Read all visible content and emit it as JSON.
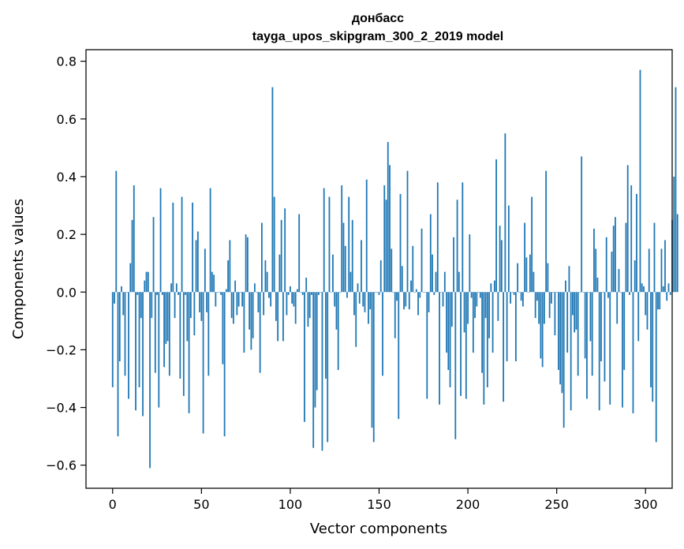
{
  "chart_data": {
    "type": "bar",
    "title_line1": "донбасс",
    "title_line2": "tayga_upos_skipgram_300_2_2019 model",
    "xlabel": "Vector components",
    "ylabel": "Components values",
    "xlim": [
      -15,
      315
    ],
    "ylim": [
      -0.68,
      0.84
    ],
    "x_ticks": [
      0,
      50,
      100,
      150,
      200,
      250,
      300
    ],
    "y_ticks": [
      -0.6,
      -0.4,
      -0.2,
      0.0,
      0.2,
      0.4,
      0.6,
      0.8
    ],
    "x_tick_labels": [
      "0",
      "50",
      "100",
      "150",
      "200",
      "250",
      "300"
    ],
    "y_tick_labels": [
      "−0.6",
      "−0.4",
      "−0.2",
      "0.0",
      "0.2",
      "0.4",
      "0.6",
      "0.8"
    ],
    "bar_color": "#1f77b4",
    "grid": false,
    "legend": "none",
    "values": [
      -0.33,
      -0.04,
      0.42,
      -0.5,
      -0.24,
      0.02,
      -0.08,
      -0.29,
      0.0,
      -0.37,
      0.1,
      0.25,
      0.37,
      -0.41,
      -0.01,
      -0.33,
      -0.09,
      -0.43,
      0.04,
      0.07,
      0.07,
      -0.61,
      -0.09,
      0.26,
      -0.28,
      -0.01,
      -0.4,
      0.36,
      -0.01,
      -0.26,
      -0.18,
      -0.17,
      -0.29,
      0.03,
      0.31,
      -0.09,
      0.03,
      -0.01,
      -0.3,
      0.33,
      -0.36,
      -0.01,
      -0.17,
      -0.42,
      -0.09,
      0.31,
      -0.15,
      0.18,
      0.21,
      -0.07,
      -0.1,
      -0.49,
      0.15,
      -0.07,
      -0.29,
      0.36,
      0.07,
      0.06,
      -0.05,
      0.0,
      0.0,
      -0.01,
      -0.25,
      -0.5,
      0.01,
      0.11,
      0.18,
      -0.09,
      -0.11,
      0.04,
      -0.08,
      -0.05,
      0.0,
      -0.05,
      -0.21,
      0.2,
      0.19,
      -0.13,
      -0.2,
      -0.16,
      0.03,
      0.0,
      -0.07,
      -0.28,
      0.24,
      -0.08,
      0.11,
      0.07,
      -0.02,
      -0.05,
      0.71,
      0.33,
      -0.1,
      -0.17,
      0.13,
      0.25,
      -0.17,
      0.29,
      -0.08,
      -0.01,
      0.02,
      -0.04,
      -0.05,
      -0.11,
      0.01,
      0.27,
      0.0,
      -0.01,
      -0.45,
      0.05,
      -0.12,
      -0.09,
      -0.01,
      -0.54,
      -0.4,
      -0.34,
      -0.01,
      0.0,
      -0.55,
      0.36,
      -0.3,
      -0.52,
      0.33,
      0.0,
      0.13,
      -0.05,
      -0.13,
      -0.27,
      0.0,
      0.37,
      0.24,
      0.16,
      -0.02,
      0.33,
      0.07,
      0.25,
      -0.08,
      -0.19,
      0.03,
      -0.04,
      0.18,
      -0.05,
      -0.07,
      0.39,
      -0.11,
      -0.06,
      -0.47,
      -0.52,
      0.0,
      0.0,
      -0.01,
      0.11,
      -0.29,
      0.37,
      0.32,
      0.52,
      0.44,
      0.15,
      0.0,
      -0.16,
      -0.03,
      -0.44,
      0.34,
      0.09,
      -0.06,
      -0.05,
      0.42,
      -0.06,
      0.04,
      0.16,
      0.0,
      0.01,
      -0.08,
      -0.02,
      0.22,
      0.0,
      0.0,
      -0.37,
      -0.07,
      0.27,
      0.13,
      -0.01,
      0.07,
      0.38,
      -0.39,
      0.0,
      -0.05,
      0.07,
      -0.21,
      -0.27,
      -0.33,
      -0.12,
      0.19,
      -0.51,
      0.32,
      0.07,
      -0.36,
      0.38,
      -0.14,
      -0.37,
      -0.11,
      0.2,
      -0.02,
      -0.21,
      -0.09,
      -0.05,
      0.0,
      -0.02,
      -0.28,
      -0.39,
      -0.09,
      -0.33,
      -0.16,
      0.03,
      -0.21,
      0.04,
      0.46,
      -0.1,
      0.23,
      0.18,
      -0.38,
      0.55,
      -0.24,
      0.3,
      -0.04,
      0.0,
      -0.01,
      -0.24,
      0.1,
      0.0,
      -0.03,
      -0.05,
      0.24,
      0.12,
      0.0,
      0.13,
      0.33,
      0.07,
      -0.09,
      -0.03,
      -0.11,
      -0.23,
      -0.26,
      -0.11,
      0.42,
      0.1,
      -0.09,
      -0.04,
      0.0,
      -0.15,
      0.0,
      -0.27,
      -0.32,
      -0.35,
      -0.47,
      0.04,
      -0.21,
      0.09,
      -0.41,
      -0.08,
      -0.14,
      -0.13,
      -0.29,
      0.0,
      0.47,
      0.0,
      -0.23,
      -0.37,
      0.0,
      -0.17,
      -0.29,
      0.22,
      0.15,
      0.05,
      -0.41,
      -0.24,
      0.0,
      -0.31,
      0.19,
      -0.02,
      -0.39,
      0.14,
      0.23,
      0.26,
      -0.11,
      0.08,
      0.0,
      -0.4,
      -0.27,
      0.24,
      0.44,
      -0.01,
      0.37,
      -0.42,
      0.11,
      0.34,
      -0.17,
      0.77,
      0.03,
      0.02,
      -0.08,
      -0.13,
      0.15,
      -0.33,
      -0.38,
      0.24,
      -0.52,
      -0.06,
      -0.06,
      0.15,
      0.02,
      0.18,
      -0.03,
      0.03,
      -0.01,
      0.25,
      0.4,
      0.71,
      0.27
    ]
  }
}
